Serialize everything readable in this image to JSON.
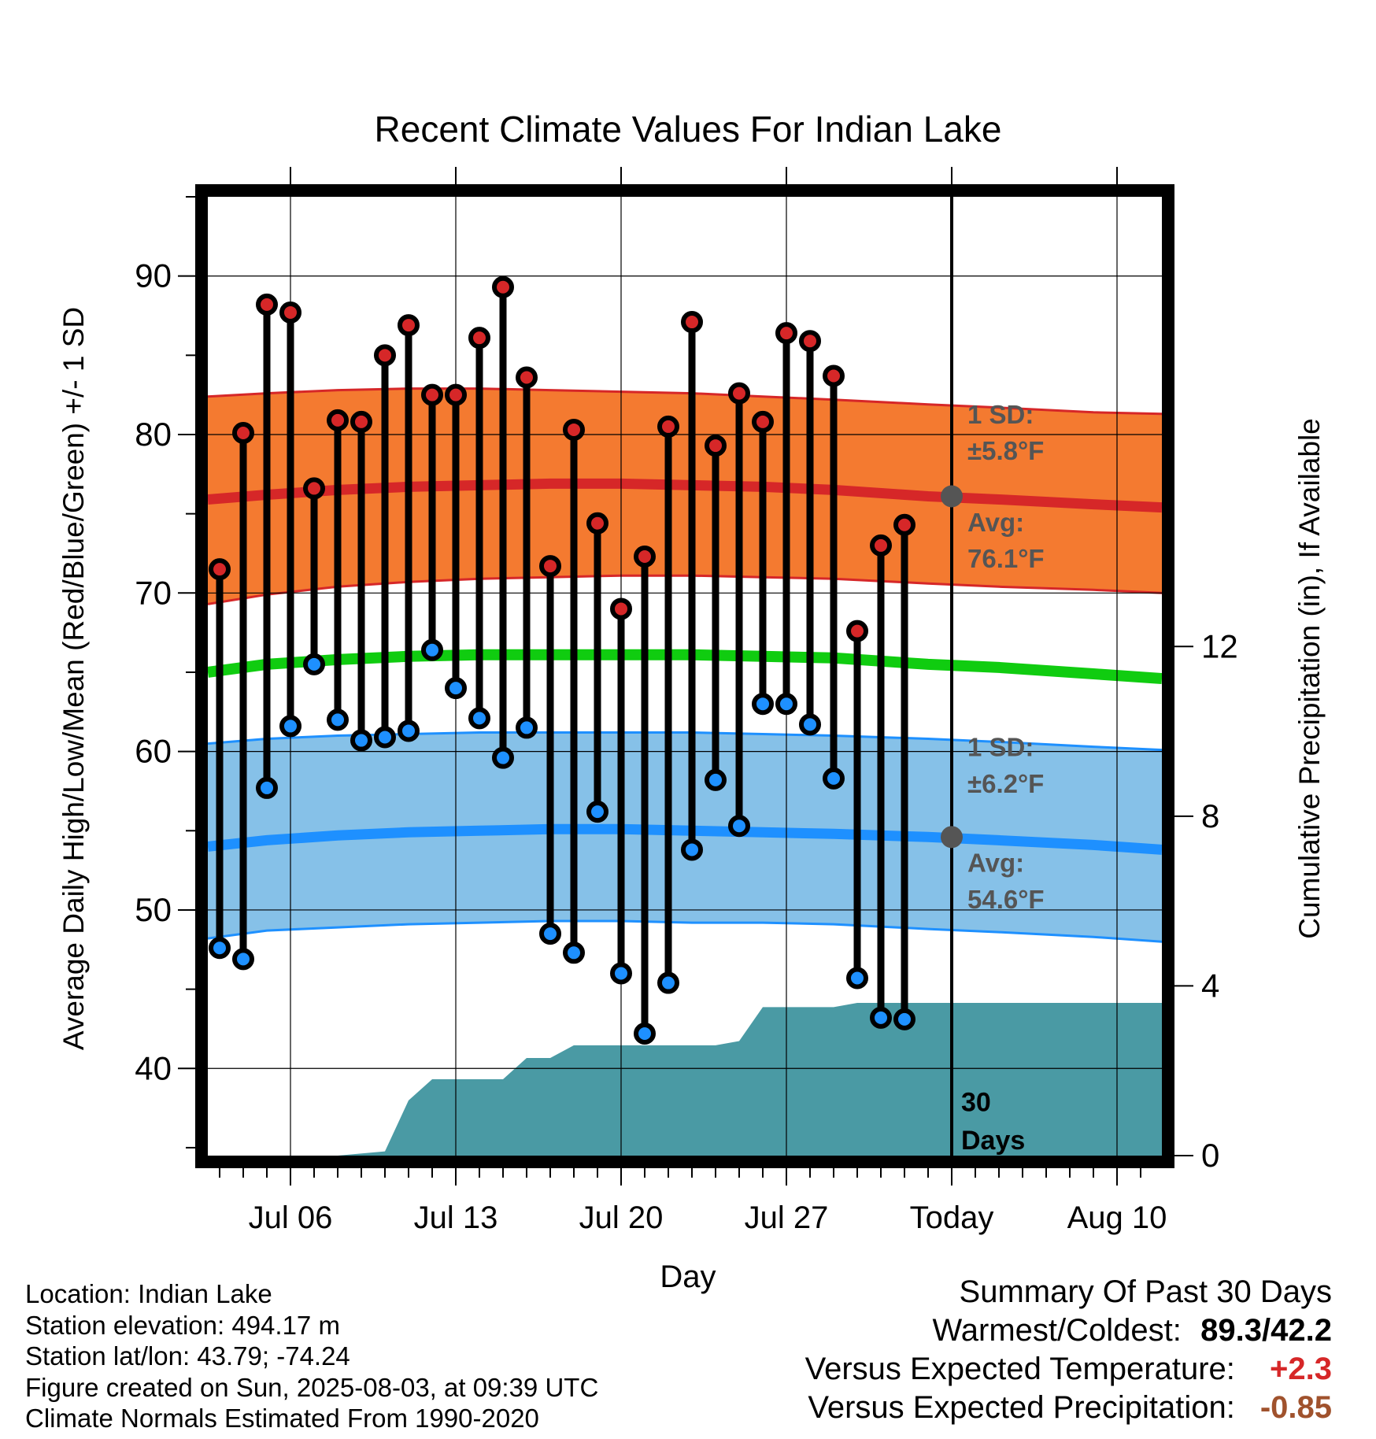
{
  "chart_data": {
    "type": "line",
    "title": "Recent Climate Values For Indian Lake",
    "xlabel": "Day",
    "ylabel": "Average Daily High/Low/Mean (Red/Blue/Green) +/- 1 SD",
    "ylabel_right": "Cumulative Precipitation (in), If Available",
    "ylim": [
      34.5,
      95
    ],
    "y2lim": [
      0,
      22.6
    ],
    "x_tick_labels": [
      "Jul 06",
      "Jul 13",
      "Jul 20",
      "Jul 27",
      "Today",
      "Aug 10"
    ],
    "y_ticks": [
      40,
      50,
      60,
      70,
      80,
      90
    ],
    "y2_ticks": [
      0,
      4,
      8,
      12
    ],
    "grid": true,
    "today_label": "Today",
    "window_label": "30 Days",
    "daily_high": [
      71.5,
      80.1,
      88.2,
      87.7,
      76.6,
      80.9,
      80.8,
      85.0,
      86.9,
      82.5,
      82.5,
      86.1,
      89.3,
      83.6,
      71.7,
      80.3,
      74.4,
      69.0,
      72.3,
      80.5,
      87.1,
      79.3,
      82.6,
      80.8,
      86.4,
      85.9,
      83.7,
      67.6,
      73.0,
      74.3
    ],
    "daily_low": [
      47.6,
      46.9,
      57.7,
      61.6,
      65.5,
      62.0,
      60.7,
      60.9,
      61.3,
      66.4,
      64.0,
      62.1,
      59.6,
      61.5,
      48.5,
      47.3,
      56.2,
      46.0,
      42.2,
      45.4,
      53.8,
      58.2,
      55.3,
      63.0,
      63.0,
      61.7,
      58.3,
      45.7,
      43.2,
      43.1
    ],
    "days_x": [
      3,
      4,
      5,
      6,
      7,
      8,
      9,
      10,
      11,
      12,
      13,
      14,
      15,
      16,
      17,
      18,
      19,
      20,
      21,
      22,
      23,
      24,
      25,
      26,
      27,
      28,
      29,
      30,
      31,
      32
    ],
    "normal_x": [
      2.5,
      5,
      8,
      11,
      14,
      17,
      20,
      23,
      26,
      29,
      33,
      36,
      40,
      42.9
    ],
    "normal_high": [
      75.9,
      76.2,
      76.5,
      76.7,
      76.8,
      76.9,
      76.9,
      76.8,
      76.7,
      76.5,
      76.1,
      75.9,
      75.6,
      75.4
    ],
    "normal_high_upper": [
      82.4,
      82.6,
      82.8,
      82.9,
      82.9,
      82.8,
      82.7,
      82.6,
      82.4,
      82.2,
      81.9,
      81.7,
      81.4,
      81.3
    ],
    "normal_high_lower": [
      69.3,
      69.9,
      70.4,
      70.7,
      70.9,
      71.0,
      71.1,
      71.1,
      71.0,
      70.9,
      70.6,
      70.4,
      70.2,
      70.0
    ],
    "normal_mean": [
      65.0,
      65.5,
      65.8,
      66.0,
      66.1,
      66.1,
      66.1,
      66.1,
      66.0,
      65.9,
      65.5,
      65.3,
      64.9,
      64.6
    ],
    "normal_low": [
      54.0,
      54.4,
      54.7,
      54.9,
      55.0,
      55.1,
      55.1,
      55.0,
      54.9,
      54.8,
      54.6,
      54.4,
      54.1,
      53.8
    ],
    "normal_low_upper": [
      60.5,
      60.8,
      61.0,
      61.1,
      61.2,
      61.2,
      61.2,
      61.2,
      61.1,
      61.0,
      60.8,
      60.6,
      60.3,
      60.1
    ],
    "normal_low_lower": [
      48.2,
      48.7,
      48.9,
      49.1,
      49.2,
      49.3,
      49.3,
      49.2,
      49.2,
      49.1,
      48.8,
      48.6,
      48.3,
      48.0
    ],
    "precip_x": [
      2.5,
      8,
      10,
      11,
      12,
      14,
      15,
      16,
      17,
      18,
      19,
      22,
      24,
      25,
      26,
      28,
      29,
      30,
      31,
      42.9
    ],
    "precip_cumulative": [
      0,
      0,
      0.1,
      1.3,
      1.8,
      1.8,
      1.8,
      2.3,
      2.3,
      2.6,
      2.6,
      2.6,
      2.6,
      2.7,
      3.5,
      3.5,
      3.5,
      3.6,
      3.6,
      3.6
    ],
    "annotations": {
      "high_sd_label": "1 SD:",
      "high_sd_value": "±5.8°F",
      "high_avg_label": "Avg:",
      "high_avg_value": "76.1°F",
      "low_sd_label": "1 SD:",
      "low_sd_value": "±6.2°F",
      "low_avg_label": "Avg:",
      "low_avg_value": "54.6°F"
    },
    "today_high_avg": 76.1,
    "today_low_avg": 54.6,
    "colors": {
      "high_band": "#f47a30",
      "high_line": "#d62728",
      "mean_line": "#10cc10",
      "low_band": "#86c1e8",
      "low_line": "#1e90ff",
      "precip": "#4a9aa4",
      "marker_high": "#d62728",
      "marker_low": "#1e90ff"
    }
  },
  "info": {
    "location": "Location: Indian Lake",
    "elevation": "Station elevation: 494.17 m",
    "latlon": "Station lat/lon: 43.79; -74.24",
    "created": "Figure created on Sun, 2025-08-03, at 09:39 UTC",
    "normals": "Climate Normals Estimated From 1990-2020"
  },
  "summary": {
    "title": "Summary Of Past 30 Days",
    "warm_cold_label": "Warmest/Coldest:",
    "warm_cold_value": "89.3/42.2",
    "temp_label": "Versus Expected Temperature:",
    "temp_value": "+2.3",
    "precip_label": "Versus Expected Precipitation:",
    "precip_value": "-0.85"
  }
}
